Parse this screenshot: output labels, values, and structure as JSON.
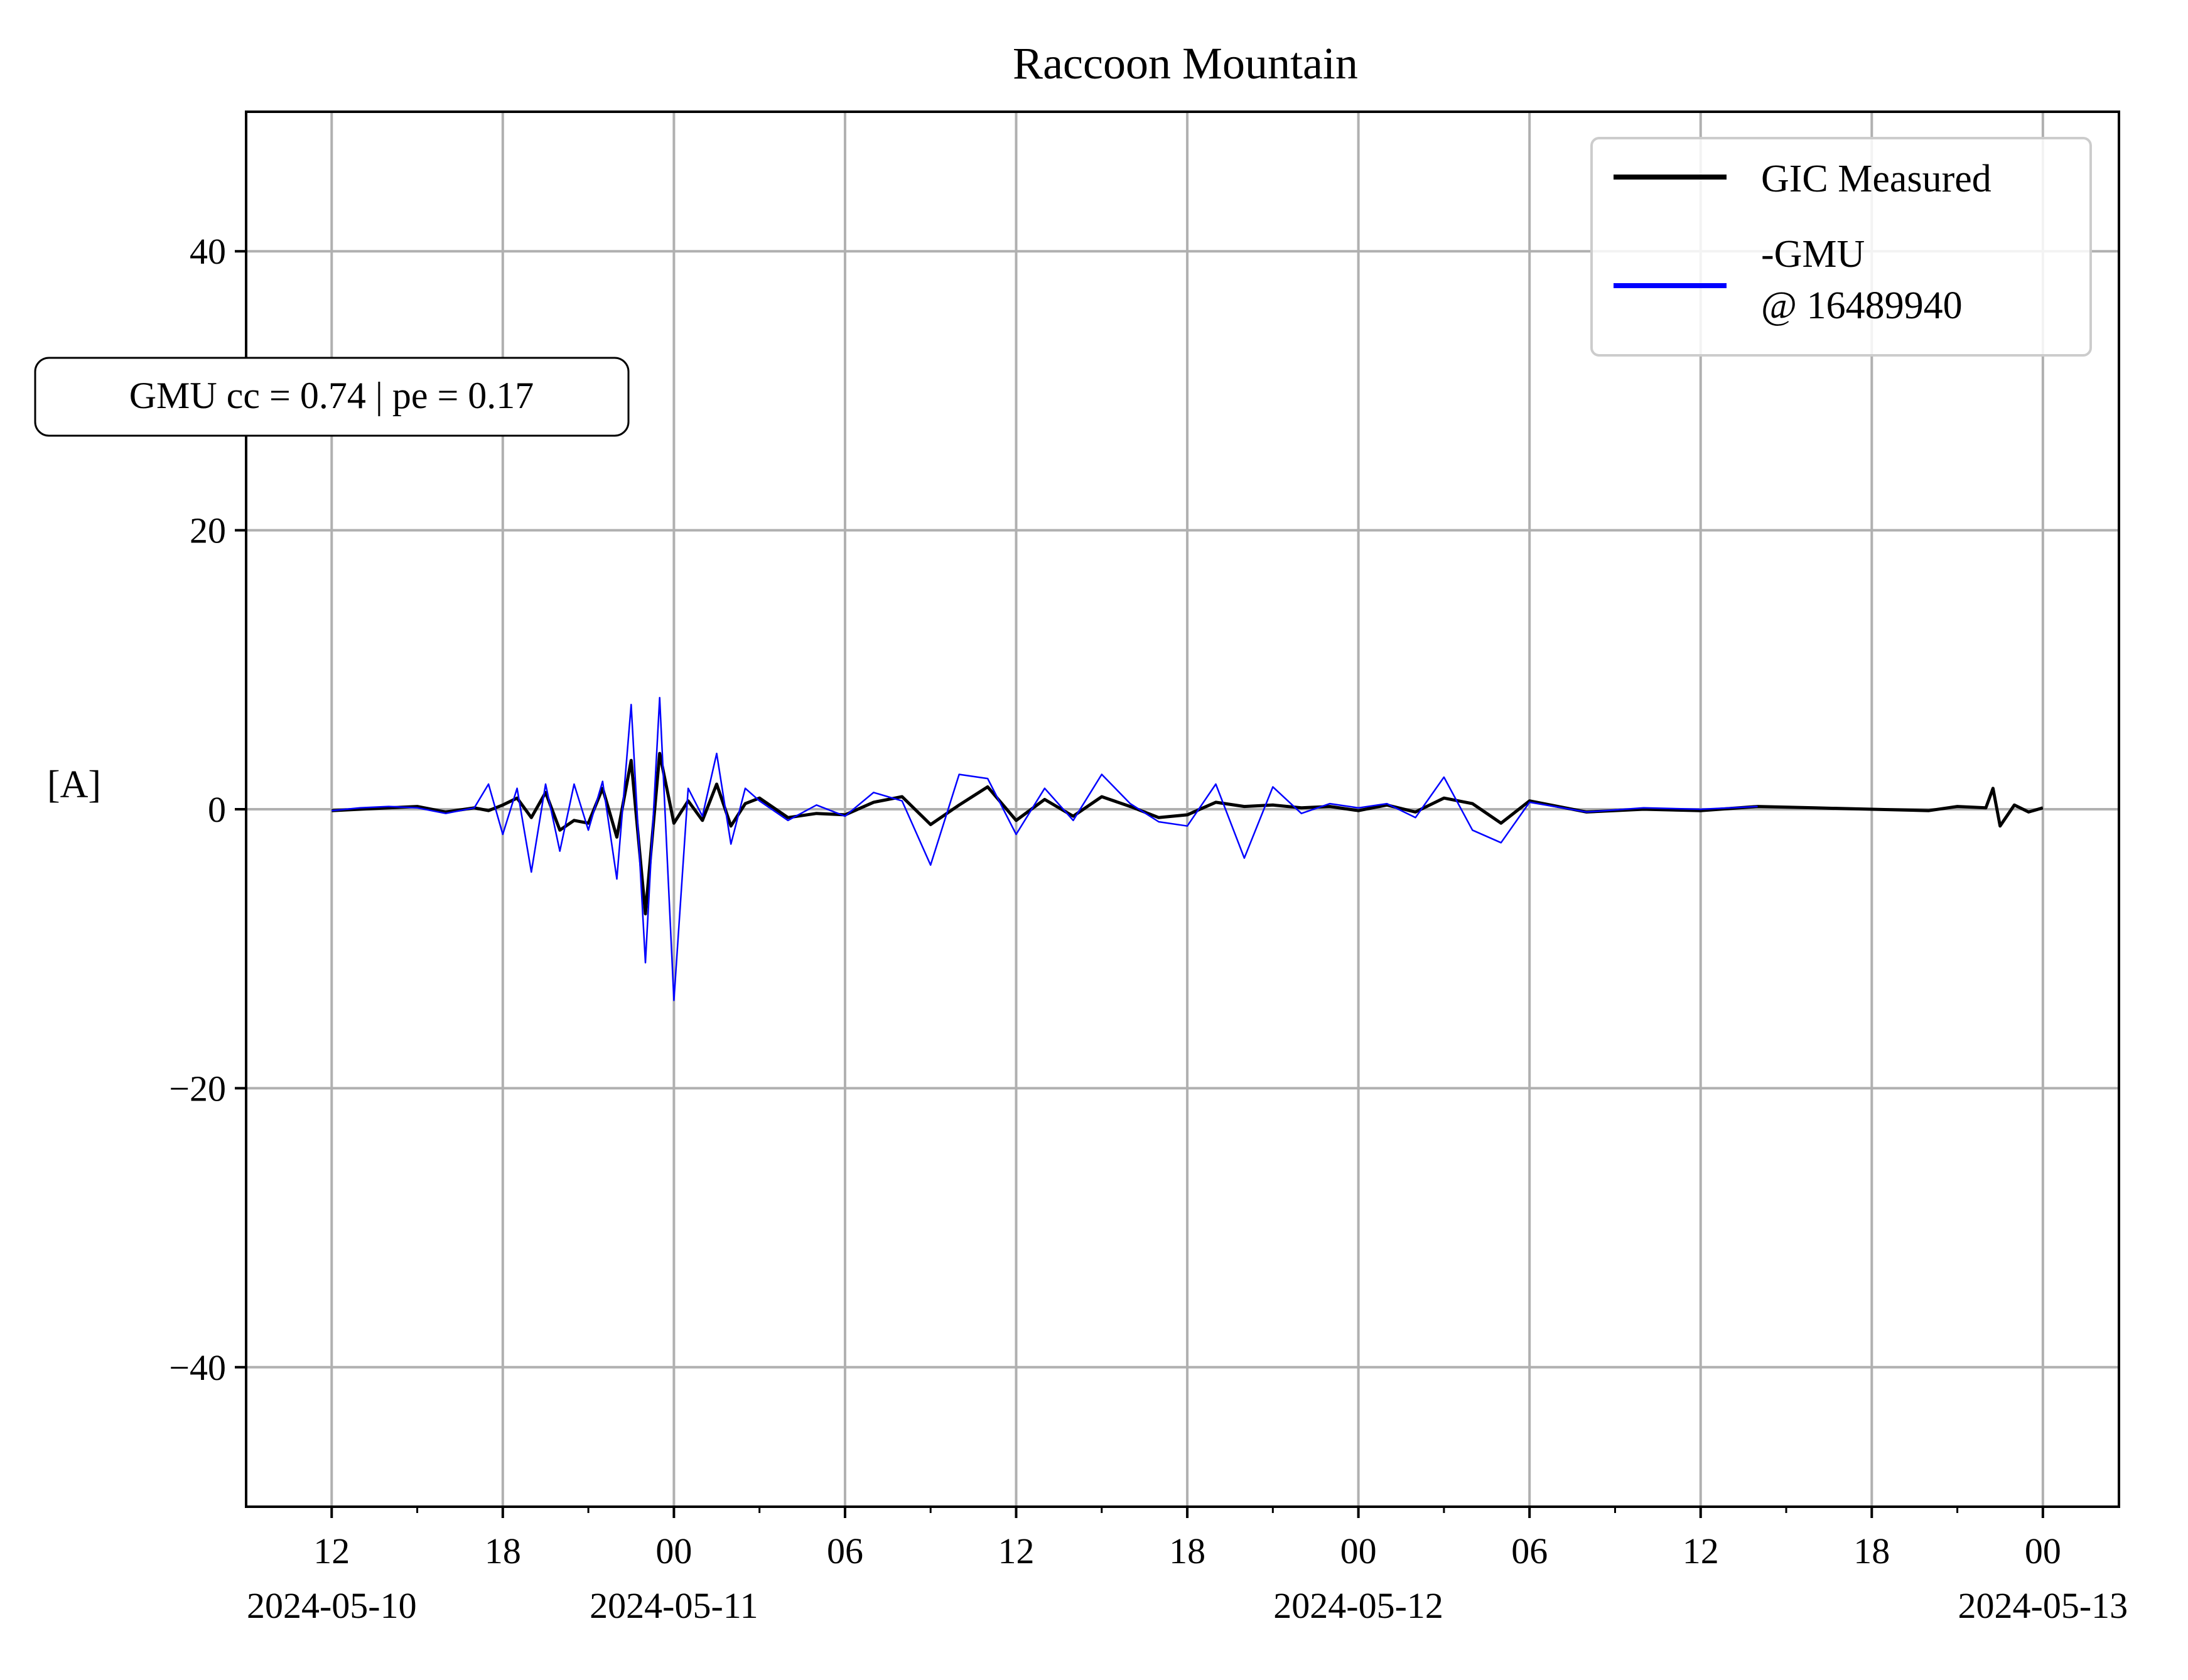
{
  "chart_data": {
    "type": "line",
    "title": "Raccoon Mountain",
    "xlabel": "",
    "ylabel": "[A]",
    "xlim": [
      "2024-05-10 09:00",
      "2024-05-13 02:40"
    ],
    "ylim": [
      -50,
      50
    ],
    "grid": true,
    "legend_placement": "top-right",
    "x_ticks": [
      {
        "t": "2024-05-10 12:00",
        "label": "12",
        "date": "2024-05-10"
      },
      {
        "t": "2024-05-10 18:00",
        "label": "18",
        "date": ""
      },
      {
        "t": "2024-05-11 00:00",
        "label": "00",
        "date": "2024-05-11"
      },
      {
        "t": "2024-05-11 06:00",
        "label": "06",
        "date": ""
      },
      {
        "t": "2024-05-11 12:00",
        "label": "12",
        "date": ""
      },
      {
        "t": "2024-05-11 18:00",
        "label": "18",
        "date": ""
      },
      {
        "t": "2024-05-12 00:00",
        "label": "00",
        "date": "2024-05-12"
      },
      {
        "t": "2024-05-12 06:00",
        "label": "06",
        "date": ""
      },
      {
        "t": "2024-05-12 12:00",
        "label": "12",
        "date": ""
      },
      {
        "t": "2024-05-12 18:00",
        "label": "18",
        "date": ""
      },
      {
        "t": "2024-05-13 00:00",
        "label": "00",
        "date": "2024-05-13"
      }
    ],
    "minor_ticks": [
      "2024-05-10 15:00",
      "2024-05-10 21:00",
      "2024-05-11 03:00",
      "2024-05-11 09:00",
      "2024-05-11 15:00",
      "2024-05-11 21:00",
      "2024-05-12 03:00",
      "2024-05-12 09:00",
      "2024-05-12 15:00",
      "2024-05-12 21:00"
    ],
    "y_ticks": [
      {
        "v": -40,
        "label": "−40"
      },
      {
        "v": -20,
        "label": "−20"
      },
      {
        "v": 0,
        "label": "0"
      },
      {
        "v": 20,
        "label": "20"
      },
      {
        "v": 40,
        "label": "40"
      }
    ],
    "series": [
      {
        "name": "GIC Measured",
        "color": "#000000",
        "x": [
          "2024-05-10 12:00",
          "2024-05-10 13:00",
          "2024-05-10 14:00",
          "2024-05-10 15:00",
          "2024-05-10 16:00",
          "2024-05-10 17:00",
          "2024-05-10 17:30",
          "2024-05-10 18:00",
          "2024-05-10 18:30",
          "2024-05-10 19:00",
          "2024-05-10 19:30",
          "2024-05-10 20:00",
          "2024-05-10 20:30",
          "2024-05-10 21:00",
          "2024-05-10 21:30",
          "2024-05-10 22:00",
          "2024-05-10 22:30",
          "2024-05-10 23:00",
          "2024-05-10 23:30",
          "2024-05-11 00:00",
          "2024-05-11 00:30",
          "2024-05-11 01:00",
          "2024-05-11 01:30",
          "2024-05-11 02:00",
          "2024-05-11 02:30",
          "2024-05-11 03:00",
          "2024-05-11 04:00",
          "2024-05-11 05:00",
          "2024-05-11 06:00",
          "2024-05-11 07:00",
          "2024-05-11 08:00",
          "2024-05-11 09:00",
          "2024-05-11 10:00",
          "2024-05-11 11:00",
          "2024-05-11 12:00",
          "2024-05-11 13:00",
          "2024-05-11 14:00",
          "2024-05-11 15:00",
          "2024-05-11 16:00",
          "2024-05-11 17:00",
          "2024-05-11 18:00",
          "2024-05-11 19:00",
          "2024-05-11 20:00",
          "2024-05-11 21:00",
          "2024-05-11 22:00",
          "2024-05-11 23:00",
          "2024-05-12 00:00",
          "2024-05-12 01:00",
          "2024-05-12 02:00",
          "2024-05-12 03:00",
          "2024-05-12 04:00",
          "2024-05-12 05:00",
          "2024-05-12 06:00",
          "2024-05-12 08:00",
          "2024-05-12 10:00",
          "2024-05-12 12:00",
          "2024-05-12 14:00",
          "2024-05-12 16:00",
          "2024-05-12 18:00",
          "2024-05-12 20:00",
          "2024-05-12 21:00",
          "2024-05-12 22:00",
          "2024-05-12 22:15",
          "2024-05-12 22:30",
          "2024-05-12 23:00",
          "2024-05-12 23:30",
          "2024-05-13 00:00"
        ],
        "y": [
          -0.1,
          0.0,
          0.1,
          0.2,
          -0.2,
          0.1,
          -0.1,
          0.3,
          0.8,
          -0.6,
          1.2,
          -1.5,
          -0.8,
          -1.0,
          1.5,
          -2.0,
          3.5,
          -7.5,
          4.0,
          -1.0,
          0.6,
          -0.8,
          1.8,
          -1.2,
          0.4,
          0.8,
          -0.6,
          -0.3,
          -0.4,
          0.5,
          0.9,
          -1.1,
          0.3,
          1.6,
          -0.8,
          0.7,
          -0.5,
          0.9,
          0.2,
          -0.6,
          -0.4,
          0.5,
          0.2,
          0.3,
          0.1,
          0.2,
          -0.1,
          0.3,
          -0.2,
          0.8,
          0.4,
          -1.0,
          0.6,
          -0.2,
          0.0,
          -0.1,
          0.2,
          0.1,
          0.0,
          -0.1,
          0.2,
          0.1,
          1.5,
          -1.2,
          0.3,
          -0.2,
          0.1
        ]
      },
      {
        "name": "-GMU\n@ 16489940",
        "color": "#0000ff",
        "x": [
          "2024-05-10 12:00",
          "2024-05-10 13:00",
          "2024-05-10 14:00",
          "2024-05-10 15:00",
          "2024-05-10 16:00",
          "2024-05-10 17:00",
          "2024-05-10 17:30",
          "2024-05-10 18:00",
          "2024-05-10 18:30",
          "2024-05-10 19:00",
          "2024-05-10 19:30",
          "2024-05-10 20:00",
          "2024-05-10 20:30",
          "2024-05-10 21:00",
          "2024-05-10 21:30",
          "2024-05-10 22:00",
          "2024-05-10 22:30",
          "2024-05-10 23:00",
          "2024-05-10 23:30",
          "2024-05-11 00:00",
          "2024-05-11 00:30",
          "2024-05-11 01:00",
          "2024-05-11 01:30",
          "2024-05-11 02:00",
          "2024-05-11 02:30",
          "2024-05-11 03:00",
          "2024-05-11 04:00",
          "2024-05-11 05:00",
          "2024-05-11 06:00",
          "2024-05-11 07:00",
          "2024-05-11 08:00",
          "2024-05-11 09:00",
          "2024-05-11 10:00",
          "2024-05-11 11:00",
          "2024-05-11 12:00",
          "2024-05-11 13:00",
          "2024-05-11 14:00",
          "2024-05-11 15:00",
          "2024-05-11 16:00",
          "2024-05-11 17:00",
          "2024-05-11 18:00",
          "2024-05-11 19:00",
          "2024-05-11 20:00",
          "2024-05-11 21:00",
          "2024-05-11 22:00",
          "2024-05-11 23:00",
          "2024-05-12 00:00",
          "2024-05-12 01:00",
          "2024-05-12 02:00",
          "2024-05-12 03:00",
          "2024-05-12 04:00",
          "2024-05-12 05:00",
          "2024-05-12 06:00",
          "2024-05-12 08:00",
          "2024-05-12 10:00",
          "2024-05-12 12:00",
          "2024-05-12 14:00"
        ],
        "y": [
          -0.1,
          0.1,
          0.2,
          0.1,
          -0.3,
          0.1,
          1.8,
          -1.8,
          1.5,
          -4.5,
          1.8,
          -3.0,
          1.8,
          -1.5,
          2.0,
          -5.0,
          7.5,
          -11.0,
          8.0,
          -13.7,
          1.5,
          -0.5,
          4.0,
          -2.5,
          1.5,
          0.6,
          -0.8,
          0.3,
          -0.5,
          1.2,
          0.6,
          -4.0,
          2.5,
          2.2,
          -1.8,
          1.5,
          -0.8,
          2.5,
          0.4,
          -0.9,
          -1.2,
          1.8,
          -3.5,
          1.6,
          -0.3,
          0.4,
          0.1,
          0.4,
          -0.6,
          2.3,
          -1.5,
          -2.4,
          0.5,
          -0.2,
          0.1,
          0.0,
          0.2
        ]
      }
    ],
    "annotations": [
      {
        "text": "GMU cc = 0.74 | pe = 0.17",
        "anchor": "upper-left-outside"
      }
    ]
  }
}
